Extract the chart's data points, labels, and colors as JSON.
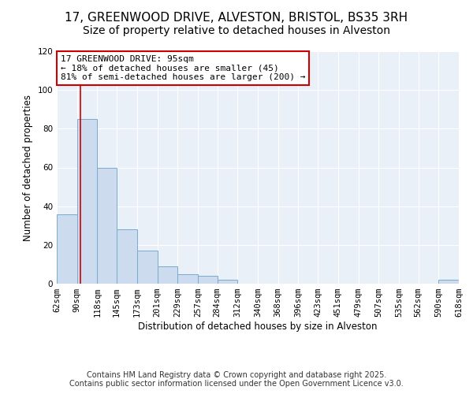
{
  "title": "17, GREENWOOD DRIVE, ALVESTON, BRISTOL, BS35 3RH",
  "subtitle": "Size of property relative to detached houses in Alveston",
  "xlabel": "Distribution of detached houses by size in Alveston",
  "ylabel": "Number of detached properties",
  "bin_edges": [
    62,
    90,
    118,
    145,
    173,
    201,
    229,
    257,
    284,
    312,
    340,
    368,
    396,
    423,
    451,
    479,
    507,
    535,
    562,
    590,
    618
  ],
  "bar_heights": [
    36,
    85,
    60,
    28,
    17,
    9,
    5,
    4,
    2,
    0,
    0,
    0,
    0,
    0,
    0,
    0,
    0,
    0,
    0,
    2
  ],
  "bar_color": "#ccdcee",
  "bar_edge_color": "#7aabcc",
  "property_value": 95,
  "annotation_line1": "17 GREENWOOD DRIVE: 95sqm",
  "annotation_line2": "← 18% of detached houses are smaller (45)",
  "annotation_line3": "81% of semi-detached houses are larger (200) →",
  "vline_color": "#cc0000",
  "annotation_box_edge_color": "#cc0000",
  "ylim": [
    0,
    120
  ],
  "yticks": [
    0,
    20,
    40,
    60,
    80,
    100,
    120
  ],
  "background_color": "#ffffff",
  "plot_bg_color": "#eaf0f8",
  "grid_color": "#ffffff",
  "footer_line1": "Contains HM Land Registry data © Crown copyright and database right 2025.",
  "footer_line2": "Contains public sector information licensed under the Open Government Licence v3.0.",
  "title_fontsize": 11,
  "xlabel_fontsize": 8.5,
  "ylabel_fontsize": 8.5,
  "tick_fontsize": 7.5,
  "annotation_fontsize": 8,
  "footer_fontsize": 7
}
